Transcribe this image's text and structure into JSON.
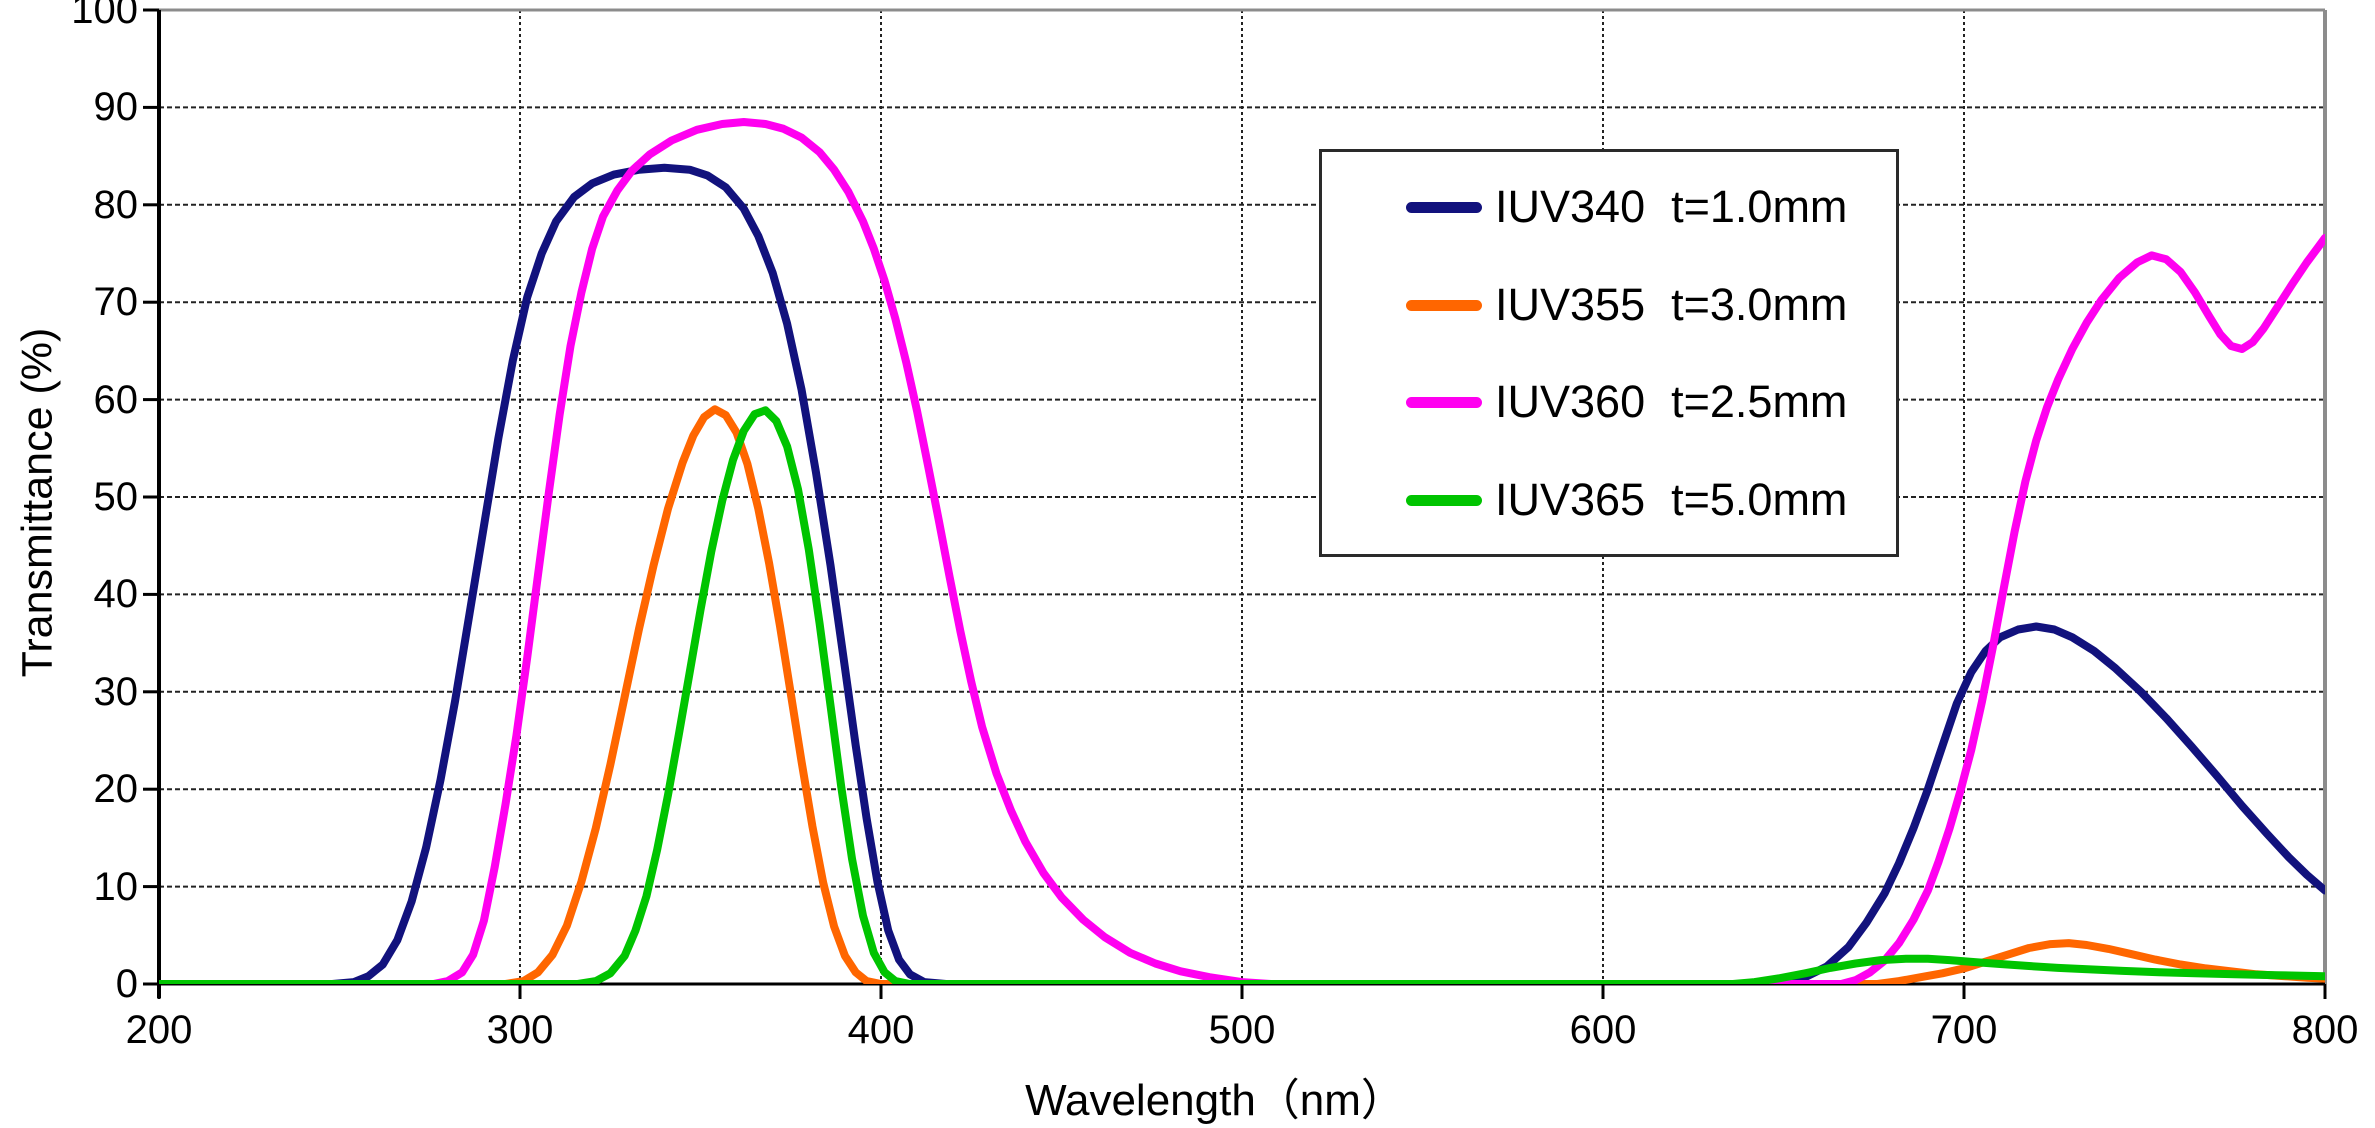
{
  "chart_data": {
    "type": "line",
    "title": "",
    "xlabel": "Wavelength（nm）",
    "ylabel": "Transmittance (%)",
    "xlim": [
      200,
      800
    ],
    "ylim": [
      0,
      100
    ],
    "x_ticks": [
      200,
      300,
      400,
      500,
      600,
      700,
      800
    ],
    "y_ticks": [
      0,
      10,
      20,
      30,
      40,
      50,
      60,
      70,
      80,
      90,
      100
    ],
    "grid": true,
    "legend_position": "upper-right-inside",
    "colors": {
      "grid": "#222222",
      "axis_dark": "#000000",
      "axis_light": "#8c8c8c",
      "background": "#ffffff"
    },
    "series": [
      {
        "name": "IUV340",
        "thickness": "t=1.0mm",
        "color": "#12127d",
        "points": [
          [
            200,
            0
          ],
          [
            248,
            0
          ],
          [
            254,
            0.2
          ],
          [
            258,
            0.8
          ],
          [
            262,
            2
          ],
          [
            266,
            4.5
          ],
          [
            270,
            8.5
          ],
          [
            274,
            14
          ],
          [
            278,
            21
          ],
          [
            282,
            29
          ],
          [
            286,
            38
          ],
          [
            290,
            47
          ],
          [
            294,
            56
          ],
          [
            298,
            64
          ],
          [
            302,
            70.5
          ],
          [
            306,
            75
          ],
          [
            310,
            78.3
          ],
          [
            315,
            80.8
          ],
          [
            320,
            82.2
          ],
          [
            326,
            83.1
          ],
          [
            333,
            83.6
          ],
          [
            340,
            83.8
          ],
          [
            347,
            83.6
          ],
          [
            352,
            83
          ],
          [
            357,
            81.8
          ],
          [
            362,
            79.6
          ],
          [
            366,
            76.8
          ],
          [
            370,
            73
          ],
          [
            374,
            67.8
          ],
          [
            378,
            61
          ],
          [
            382,
            52.5
          ],
          [
            386,
            43
          ],
          [
            390,
            32.5
          ],
          [
            393,
            24.5
          ],
          [
            396,
            17
          ],
          [
            399,
            10.5
          ],
          [
            402,
            5.5
          ],
          [
            405,
            2.5
          ],
          [
            408,
            1
          ],
          [
            412,
            0.2
          ],
          [
            418,
            0
          ],
          [
            500,
            0
          ],
          [
            640,
            0
          ],
          [
            650,
            0.2
          ],
          [
            656,
            0.7
          ],
          [
            662,
            1.8
          ],
          [
            668,
            3.8
          ],
          [
            673,
            6.3
          ],
          [
            678,
            9.3
          ],
          [
            682,
            12.4
          ],
          [
            686,
            16
          ],
          [
            690,
            20
          ],
          [
            694,
            24.4
          ],
          [
            698,
            28.8
          ],
          [
            702,
            32
          ],
          [
            706,
            34.2
          ],
          [
            710,
            35.6
          ],
          [
            715,
            36.4
          ],
          [
            720,
            36.7
          ],
          [
            725,
            36.4
          ],
          [
            730,
            35.6
          ],
          [
            736,
            34.2
          ],
          [
            742,
            32.4
          ],
          [
            749,
            30
          ],
          [
            756,
            27.3
          ],
          [
            763,
            24.4
          ],
          [
            770,
            21.4
          ],
          [
            777,
            18.3
          ],
          [
            784,
            15.4
          ],
          [
            790,
            13
          ],
          [
            795,
            11.2
          ],
          [
            800,
            9.6
          ]
        ]
      },
      {
        "name": "IUV355",
        "thickness": "t=3.0mm",
        "color": "#ff6600",
        "points": [
          [
            200,
            0
          ],
          [
            296,
            0
          ],
          [
            301,
            0.3
          ],
          [
            305,
            1.2
          ],
          [
            309,
            3
          ],
          [
            313,
            6
          ],
          [
            317,
            10.5
          ],
          [
            321,
            16
          ],
          [
            325,
            22.5
          ],
          [
            329,
            29.5
          ],
          [
            333,
            36.5
          ],
          [
            337,
            43
          ],
          [
            341,
            48.8
          ],
          [
            345,
            53.5
          ],
          [
            348,
            56.3
          ],
          [
            351,
            58.2
          ],
          [
            354,
            59
          ],
          [
            357,
            58.4
          ],
          [
            360,
            56.6
          ],
          [
            363,
            53.4
          ],
          [
            366,
            48.8
          ],
          [
            369,
            43.2
          ],
          [
            372,
            36.8
          ],
          [
            375,
            29.8
          ],
          [
            378,
            22.8
          ],
          [
            381,
            16.2
          ],
          [
            384,
            10.4
          ],
          [
            387,
            5.9
          ],
          [
            390,
            2.9
          ],
          [
            393,
            1.2
          ],
          [
            396,
            0.3
          ],
          [
            400,
            0
          ],
          [
            500,
            0
          ],
          [
            676,
            0
          ],
          [
            682,
            0.3
          ],
          [
            688,
            0.7
          ],
          [
            694,
            1.1
          ],
          [
            700,
            1.6
          ],
          [
            706,
            2.3
          ],
          [
            712,
            3
          ],
          [
            718,
            3.7
          ],
          [
            724,
            4.1
          ],
          [
            729,
            4.2
          ],
          [
            734,
            4
          ],
          [
            740,
            3.6
          ],
          [
            746,
            3.1
          ],
          [
            753,
            2.5
          ],
          [
            760,
            2
          ],
          [
            767,
            1.6
          ],
          [
            774,
            1.3
          ],
          [
            781,
            1
          ],
          [
            789,
            0.8
          ],
          [
            795,
            0.65
          ],
          [
            800,
            0.55
          ]
        ]
      },
      {
        "name": "IUV360",
        "thickness": "t=2.5mm",
        "color": "#ff00f0",
        "points": [
          [
            200,
            0
          ],
          [
            276,
            0
          ],
          [
            280,
            0.3
          ],
          [
            284,
            1.2
          ],
          [
            287,
            3
          ],
          [
            290,
            6.5
          ],
          [
            293,
            12
          ],
          [
            296,
            18.5
          ],
          [
            299,
            25.5
          ],
          [
            302,
            33.5
          ],
          [
            305,
            42
          ],
          [
            308,
            50.5
          ],
          [
            311,
            58.5
          ],
          [
            314,
            65.5
          ],
          [
            317,
            71
          ],
          [
            320,
            75.5
          ],
          [
            323,
            78.8
          ],
          [
            327,
            81.5
          ],
          [
            331,
            83.5
          ],
          [
            336,
            85.2
          ],
          [
            342,
            86.6
          ],
          [
            349,
            87.7
          ],
          [
            356,
            88.3
          ],
          [
            362,
            88.5
          ],
          [
            368,
            88.3
          ],
          [
            373,
            87.8
          ],
          [
            378,
            86.9
          ],
          [
            383,
            85.4
          ],
          [
            387,
            83.6
          ],
          [
            391,
            81.3
          ],
          [
            395,
            78.3
          ],
          [
            398,
            75.5
          ],
          [
            401,
            72.2
          ],
          [
            404,
            68.3
          ],
          [
            407,
            63.8
          ],
          [
            410,
            58.8
          ],
          [
            413,
            53.3
          ],
          [
            416,
            47.6
          ],
          [
            419,
            41.8
          ],
          [
            422,
            36.2
          ],
          [
            425,
            31
          ],
          [
            428,
            26.4
          ],
          [
            432,
            21.6
          ],
          [
            436,
            17.8
          ],
          [
            440,
            14.6
          ],
          [
            445,
            11.4
          ],
          [
            450,
            8.9
          ],
          [
            456,
            6.6
          ],
          [
            462,
            4.8
          ],
          [
            469,
            3.2
          ],
          [
            476,
            2.1
          ],
          [
            483,
            1.3
          ],
          [
            491,
            0.7
          ],
          [
            500,
            0.2
          ],
          [
            508,
            0
          ],
          [
            600,
            0
          ],
          [
            666,
            0
          ],
          [
            670,
            0.4
          ],
          [
            674,
            1.2
          ],
          [
            678,
            2.4
          ],
          [
            682,
            4.2
          ],
          [
            686,
            6.6
          ],
          [
            690,
            9.6
          ],
          [
            693,
            12.6
          ],
          [
            696,
            16
          ],
          [
            699,
            19.8
          ],
          [
            702,
            24
          ],
          [
            705,
            29
          ],
          [
            708,
            34.6
          ],
          [
            711,
            40.6
          ],
          [
            714,
            46.4
          ],
          [
            717,
            51.6
          ],
          [
            720,
            55.8
          ],
          [
            723,
            59.2
          ],
          [
            726,
            62
          ],
          [
            730,
            65.2
          ],
          [
            734,
            67.9
          ],
          [
            738,
            70.2
          ],
          [
            743,
            72.5
          ],
          [
            748,
            74.1
          ],
          [
            752,
            74.8
          ],
          [
            756,
            74.4
          ],
          [
            760,
            73.1
          ],
          [
            764,
            71
          ],
          [
            768,
            68.5
          ],
          [
            771,
            66.7
          ],
          [
            774,
            65.5
          ],
          [
            777,
            65.2
          ],
          [
            780,
            65.9
          ],
          [
            783,
            67.3
          ],
          [
            787,
            69.6
          ],
          [
            791,
            71.9
          ],
          [
            795,
            74.1
          ],
          [
            798,
            75.6
          ],
          [
            800,
            76.6
          ]
        ]
      },
      {
        "name": "IUV365",
        "thickness": "t=5.0mm",
        "color": "#00c400",
        "points": [
          [
            200,
            0
          ],
          [
            316,
            0
          ],
          [
            321,
            0.3
          ],
          [
            325,
            1.1
          ],
          [
            329,
            2.9
          ],
          [
            332,
            5.5
          ],
          [
            335,
            9
          ],
          [
            338,
            13.8
          ],
          [
            341,
            19.4
          ],
          [
            344,
            25.6
          ],
          [
            347,
            32
          ],
          [
            350,
            38.4
          ],
          [
            353,
            44.4
          ],
          [
            356,
            49.6
          ],
          [
            359,
            53.8
          ],
          [
            362,
            56.8
          ],
          [
            365,
            58.5
          ],
          [
            368,
            58.9
          ],
          [
            371,
            57.8
          ],
          [
            374,
            55.2
          ],
          [
            377,
            50.8
          ],
          [
            380,
            44.6
          ],
          [
            383,
            37
          ],
          [
            386,
            28.6
          ],
          [
            389,
            20.2
          ],
          [
            392,
            12.8
          ],
          [
            395,
            7
          ],
          [
            398,
            3.2
          ],
          [
            401,
            1.2
          ],
          [
            404,
            0.3
          ],
          [
            408,
            0
          ],
          [
            500,
            0
          ],
          [
            636,
            0
          ],
          [
            642,
            0.2
          ],
          [
            649,
            0.6
          ],
          [
            656,
            1.1
          ],
          [
            663,
            1.65
          ],
          [
            670,
            2.1
          ],
          [
            677,
            2.45
          ],
          [
            684,
            2.6
          ],
          [
            690,
            2.6
          ],
          [
            696,
            2.45
          ],
          [
            703,
            2.25
          ],
          [
            710,
            2.05
          ],
          [
            718,
            1.85
          ],
          [
            726,
            1.65
          ],
          [
            735,
            1.5
          ],
          [
            744,
            1.35
          ],
          [
            754,
            1.2
          ],
          [
            764,
            1.1
          ],
          [
            775,
            1
          ],
          [
            787,
            0.9
          ],
          [
            800,
            0.8
          ]
        ]
      }
    ]
  }
}
